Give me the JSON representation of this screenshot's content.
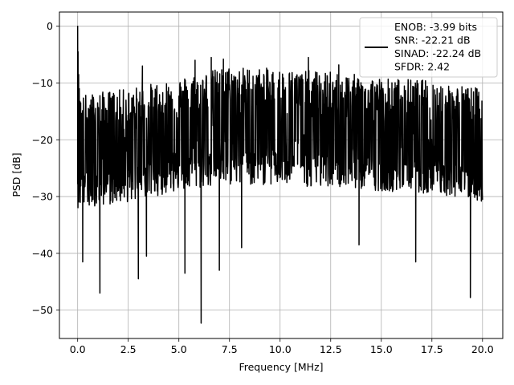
{
  "chart_data": {
    "type": "line",
    "title": "",
    "xlabel": "Frequency [MHz]",
    "ylabel": "PSD [dB]",
    "xlim": [
      -0.9,
      21.0
    ],
    "ylim": [
      -55,
      2.5
    ],
    "grid": true,
    "x_ticks": [
      0.0,
      2.5,
      5.0,
      7.5,
      10.0,
      12.5,
      15.0,
      17.5,
      20.0
    ],
    "x_tick_labels": [
      "0.0",
      "2.5",
      "5.0",
      "7.5",
      "10.0",
      "12.5",
      "15.0",
      "17.5",
      "20.0"
    ],
    "y_ticks": [
      0,
      -10,
      -20,
      -30,
      -40,
      -50
    ],
    "y_tick_labels": [
      "0",
      "−10",
      "−20",
      "−30",
      "−40",
      "−50"
    ],
    "legend": {
      "placement": "top-right",
      "lines": [
        "ENOB: -3.99 bits",
        "SNR: -22.21 dB",
        "SINAD: -22.24 dB",
        "SFDR: 2.42"
      ]
    },
    "series": [
      {
        "color": "#000000",
        "x_range": [
          0.0,
          20.0
        ],
        "num_points": 1400,
        "envelope": {
          "x": [
            0.0,
            2.5,
            5.0,
            7.5,
            10.0,
            12.5,
            15.0,
            17.5,
            20.0
          ],
          "upper": [
            -12,
            -11,
            -9,
            -7,
            -7.5,
            -8,
            -9,
            -9.5,
            -11
          ],
          "center": [
            -22,
            -21,
            -19.5,
            -18.5,
            -18.5,
            -19,
            -19.5,
            -20,
            -21
          ],
          "lower": [
            -32,
            -31,
            -29,
            -28,
            -28,
            -28.5,
            -29,
            -29.5,
            -31
          ]
        },
        "peaks": [
          {
            "x": 0.0,
            "y": 0.0
          },
          {
            "x": 0.02,
            "y": -4.5
          },
          {
            "x": 0.05,
            "y": -8.5
          },
          {
            "x": 0.08,
            "y": -11.0
          },
          {
            "x": 0.15,
            "y": -13.5
          },
          {
            "x": 3.2,
            "y": -7.0
          },
          {
            "x": 5.8,
            "y": -6.0
          },
          {
            "x": 6.6,
            "y": -5.5
          },
          {
            "x": 7.2,
            "y": -5.8
          },
          {
            "x": 11.4,
            "y": -5.5
          },
          {
            "x": 12.9,
            "y": -6.8
          }
        ],
        "dips": [
          {
            "x": 0.25,
            "y": -41.5
          },
          {
            "x": 1.1,
            "y": -47.0
          },
          {
            "x": 3.0,
            "y": -44.5
          },
          {
            "x": 3.4,
            "y": -40.5
          },
          {
            "x": 5.3,
            "y": -43.5
          },
          {
            "x": 6.1,
            "y": -52.3
          },
          {
            "x": 7.0,
            "y": -43.0
          },
          {
            "x": 8.1,
            "y": -39.0
          },
          {
            "x": 13.9,
            "y": -38.5
          },
          {
            "x": 16.7,
            "y": -41.5
          },
          {
            "x": 19.4,
            "y": -47.8
          }
        ]
      }
    ]
  }
}
